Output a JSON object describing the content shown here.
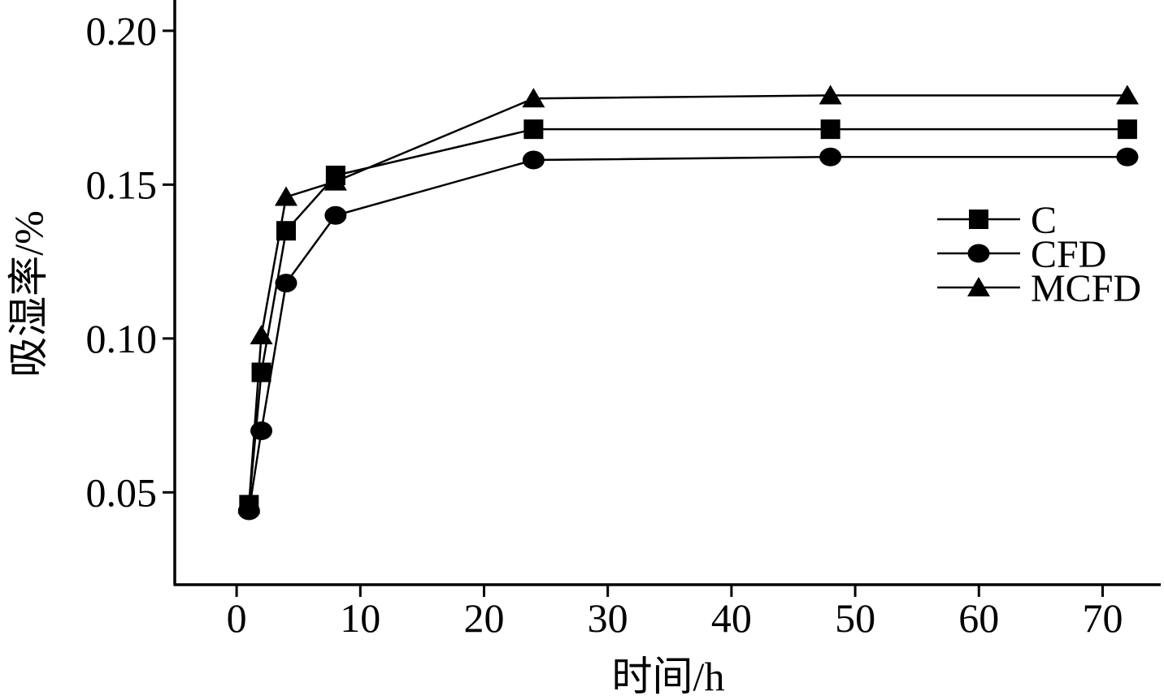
{
  "chart_data": {
    "type": "line",
    "title": "",
    "xlabel": "时间/h",
    "ylabel": "吸湿率/%",
    "xlim": [
      -5,
      74.7
    ],
    "ylim": [
      0.02,
      0.21
    ],
    "x_tick_labels": [
      "0",
      "10",
      "20",
      "30",
      "40",
      "50",
      "60",
      "70"
    ],
    "y_tick_labels": [
      "0.05",
      "0.10",
      "0.15",
      "0.20"
    ],
    "grid": false,
    "legend_position": "right",
    "x": [
      1,
      2,
      4,
      8,
      24,
      48,
      72
    ],
    "series": [
      {
        "name": "C",
        "marker": "square",
        "values": [
          0.046,
          0.089,
          0.135,
          0.153,
          0.168,
          0.168,
          0.168
        ]
      },
      {
        "name": "CFD",
        "marker": "circle",
        "values": [
          0.044,
          0.07,
          0.118,
          0.14,
          0.158,
          0.159,
          0.159
        ]
      },
      {
        "name": "MCFD",
        "marker": "triangle",
        "values": [
          0.046,
          0.101,
          0.146,
          0.151,
          0.178,
          0.179,
          0.179
        ]
      }
    ],
    "colors": {
      "line": "#000000",
      "marker": "#000000",
      "background": "#ffffff"
    }
  }
}
